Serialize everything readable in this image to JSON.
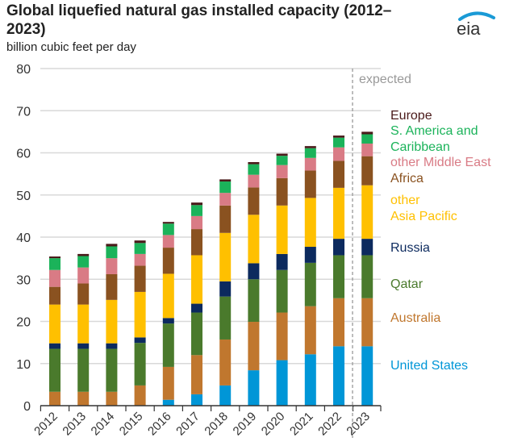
{
  "chart_data": {
    "type": "bar",
    "stacked": true,
    "title": "Global liquefied natural gas installed capacity (2012–2023)",
    "ylabel": "billion cubic feet per day",
    "xlabel": "",
    "ylim": [
      0,
      80
    ],
    "yticks": [
      0,
      10,
      20,
      30,
      40,
      50,
      60,
      70,
      80
    ],
    "grid": true,
    "legend_placement": "right",
    "annotation": "expected",
    "categories": [
      "2012",
      "2013",
      "2014",
      "2015",
      "2016",
      "2017",
      "2018",
      "2019",
      "2020",
      "2021",
      "2022",
      "2023"
    ],
    "series": [
      {
        "name": "United States",
        "color": "#0096d7",
        "values": [
          0,
          0,
          0,
          0,
          1.4,
          2.7,
          4.8,
          8.4,
          10.8,
          12.2,
          14.1,
          14.1
        ]
      },
      {
        "name": "Australia",
        "color": "#c0772e",
        "values": [
          3.3,
          3.3,
          3.3,
          4.8,
          7.8,
          9.3,
          10.9,
          11.5,
          11.3,
          11.4,
          11.4,
          11.4
        ]
      },
      {
        "name": "Qatar",
        "color": "#4a7a2c",
        "values": [
          10.2,
          10.2,
          10.2,
          10.1,
          10.3,
          10.1,
          10.2,
          10.1,
          10.1,
          10.3,
          10.2,
          10.2
        ]
      },
      {
        "name": "Russia",
        "color": "#0c2a5e",
        "values": [
          1.3,
          1.3,
          1.3,
          1.3,
          1.3,
          2.1,
          3.6,
          3.8,
          3.8,
          3.8,
          3.9,
          3.9
        ]
      },
      {
        "name": "other Asia Pacific",
        "color": "#ffc000",
        "values": [
          9.2,
          9.2,
          10.3,
          10.8,
          10.5,
          11.5,
          11.5,
          11.5,
          11.5,
          11.6,
          12.1,
          12.7
        ]
      },
      {
        "name": "Africa",
        "color": "#8a5220",
        "values": [
          4.2,
          5.0,
          6.1,
          6.2,
          6.2,
          6.2,
          6.5,
          6.5,
          6.5,
          6.5,
          6.4,
          6.9
        ]
      },
      {
        "name": "other Middle East",
        "color": "#d97b85",
        "values": [
          4.0,
          3.8,
          3.8,
          2.8,
          3.0,
          3.1,
          3.0,
          3.0,
          3.1,
          3.0,
          3.2,
          3.0
        ]
      },
      {
        "name": "S. America and Caribbean",
        "color": "#1bb35a",
        "values": [
          2.8,
          2.7,
          2.8,
          2.6,
          2.7,
          2.6,
          2.7,
          2.5,
          2.2,
          2.3,
          2.3,
          2.2
        ]
      },
      {
        "name": "Europe",
        "color": "#4a1a1a",
        "values": [
          0.4,
          0.5,
          0.6,
          0.6,
          0.4,
          0.6,
          0.5,
          0.5,
          0.5,
          0.5,
          0.5,
          0.6
        ]
      }
    ],
    "legend_lines": [
      {
        "series": "Europe",
        "lines": [
          "Europe"
        ]
      },
      {
        "series": "S. America and Caribbean",
        "lines": [
          "S. America and",
          "Caribbean"
        ]
      },
      {
        "series": "other Middle East",
        "lines": [
          "other Middle East"
        ]
      },
      {
        "series": "Africa",
        "lines": [
          "Africa"
        ]
      },
      {
        "series": "other Asia Pacific",
        "lines": [
          "other",
          "Asia Pacific"
        ]
      },
      {
        "series": "Russia",
        "lines": [
          "Russia"
        ]
      },
      {
        "series": "Qatar",
        "lines": [
          "Qatar"
        ]
      },
      {
        "series": "Australia",
        "lines": [
          "Australia"
        ]
      },
      {
        "series": "United States",
        "lines": [
          "United States"
        ]
      }
    ]
  },
  "logo": {
    "text": "eia",
    "color": "#1a9ad6"
  }
}
